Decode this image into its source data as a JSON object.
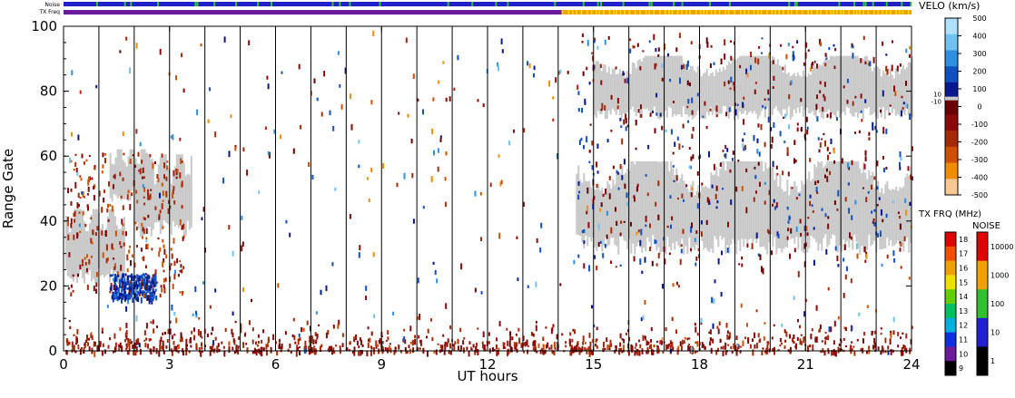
{
  "chart_data": {
    "type": "heatmap",
    "xlabel": "UT hours",
    "ylabel": "Range Gate",
    "xlim": [
      0,
      24
    ],
    "ylim": [
      0,
      100
    ],
    "x_ticks": [
      "0",
      "3",
      "6",
      "9",
      "12",
      "15",
      "18",
      "21",
      "24"
    ],
    "y_ticks": [
      "0",
      "20",
      "40",
      "60",
      "80",
      "100"
    ],
    "scan_boundaries_hours": [
      1,
      2,
      3,
      4,
      5,
      6,
      7,
      8,
      9,
      10,
      11,
      12,
      13,
      14,
      15,
      16,
      17,
      18,
      19,
      20,
      21,
      22,
      23
    ],
    "top_bars": {
      "noise_label": "Noise",
      "txfreq_label": "TX Freq",
      "noise_color": "#2020c8",
      "noise_tick_color": "#30c030",
      "txfreq_before_color": "#6a1a9a",
      "txfreq_after_color": "#f0a000",
      "txfreq_switch_hour": 14.1
    },
    "velocity_scale": {
      "title": "VELO (km/s)",
      "ticks": [
        "500",
        "400",
        "300",
        "200",
        "100",
        "0",
        "-100",
        "-200",
        "-300",
        "-400",
        "-500"
      ],
      "ground_scatter_labels": [
        "10",
        "-10"
      ],
      "ground_scatter_color": "#c8c8c8",
      "colors": [
        "#b0e0ff",
        "#70c0f0",
        "#3090e0",
        "#1050c0",
        "#0a1890",
        "#6a0000",
        "#8a0a0a",
        "#a52a0a",
        "#d05000",
        "#f08c00",
        "#f8c890"
      ]
    },
    "txfreq_scale": {
      "title": "TX FRQ (MHz)",
      "ticks": [
        "18",
        "17",
        "16",
        "15",
        "14",
        "13",
        "12",
        "11",
        "10",
        "9"
      ],
      "colors": [
        "#e00000",
        "#f05000",
        "#f0a000",
        "#f0e000",
        "#60d000",
        "#00c060",
        "#00b0e0",
        "#1030e0",
        "#6a1a9a",
        "#000000"
      ]
    },
    "noise_scale": {
      "title": "NOISE",
      "ticks": [
        "10000",
        "1000",
        "100",
        "10",
        "1"
      ],
      "colors": [
        "#e00000",
        "#f0a000",
        "#30c030",
        "#2020d0",
        "#000000"
      ]
    },
    "scatter_regions": [
      {
        "name": "ground-scatter-morning",
        "kind": "ground",
        "x": [
          0.05,
          1.7
        ],
        "y": [
          19,
          45
        ]
      },
      {
        "name": "ground-scatter-band-a",
        "kind": "ground",
        "x": [
          1.3,
          2.5
        ],
        "y": [
          45,
          63
        ]
      },
      {
        "name": "ground-scatter-band-b",
        "kind": "ground",
        "x": [
          2.0,
          3.6
        ],
        "y": [
          33,
          62
        ]
      },
      {
        "name": "ground-scatter-afternoon",
        "kind": "ground",
        "x": [
          14.5,
          24.0
        ],
        "y": [
          28,
          60
        ]
      },
      {
        "name": "ground-scatter-upper",
        "kind": "ground",
        "x": [
          15.0,
          24.0
        ],
        "y": [
          70,
          92
        ]
      }
    ],
    "ionospheric_echoes": [
      {
        "name": "low-range-echoes",
        "velocity": -150,
        "x": [
          0.0,
          24.0
        ],
        "y": [
          0,
          5
        ]
      },
      {
        "name": "morning-receding-echoes",
        "velocity": -200,
        "x": [
          0.1,
          3.4
        ],
        "y": [
          18,
          62
        ]
      },
      {
        "name": "approaching-patch",
        "velocity": 150,
        "x": [
          1.3,
          2.6
        ],
        "y": [
          16,
          24
        ]
      },
      {
        "name": "afternoon-mixed-echoes",
        "velocity": -100,
        "x": [
          14.5,
          24.0
        ],
        "y": [
          26,
          98
        ]
      }
    ]
  }
}
